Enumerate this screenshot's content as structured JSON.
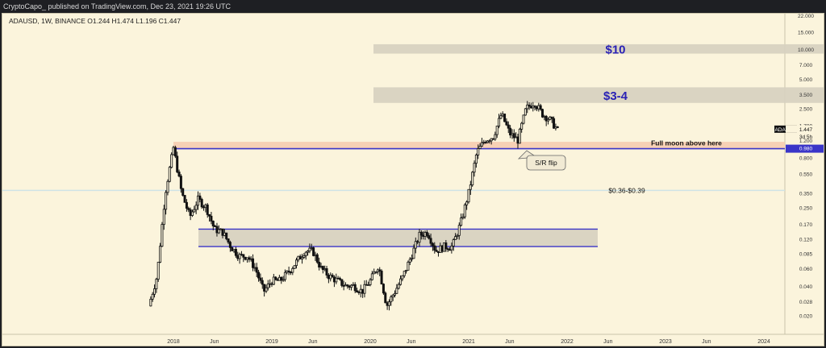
{
  "header": {
    "publish_line": "CryptoCapo_ published on TradingView.com, Dec 23, 2021 19:26 UTC",
    "symbol_line": "ADAUSD, 1W, BINANCE  O1.244  H1.474  L1.196  C1.447"
  },
  "price_tag": {
    "symbol": "ADAUSD",
    "price": "1.447",
    "countdown": "3d 5h",
    "level": "0.980"
  },
  "colors": {
    "background": "#fbf4dc",
    "candle": "#111111",
    "box_fill": "#d8d2c0",
    "line_blue": "#3a35c8",
    "salmon_zone": "#f6cdb0",
    "support_line": "#cfe3e6",
    "label_blue": "#2a22b5"
  },
  "chart_data": {
    "type": "candlestick",
    "symbol": "ADAUSD",
    "interval": "1W",
    "exchange": "BINANCE",
    "y_scale": "log",
    "ylim": [
      0.015,
      22.0
    ],
    "y_ticks": [
      "22.000",
      "15.000",
      "10.000",
      "7.000",
      "5.000",
      "3.500",
      "2.500",
      "1.700",
      "1.200",
      "0.800",
      "0.550",
      "0.350",
      "0.250",
      "0.170",
      "0.120",
      "0.085",
      "0.060",
      "0.040",
      "0.028",
      "0.020"
    ],
    "x_ticks": [
      "2018",
      "Jun",
      "2019",
      "Jun",
      "2020",
      "Jun",
      "2021",
      "Jun",
      "2022",
      "Jun",
      "2023",
      "Jun",
      "2024"
    ],
    "x_tick_dates": [
      "2018-01",
      "2018-06",
      "2019-01",
      "2019-06",
      "2020-01",
      "2020-06",
      "2021-01",
      "2021-06",
      "2022-01",
      "2022-06",
      "2023-01",
      "2023-06",
      "2024-01"
    ],
    "zones": [
      {
        "label": "$10",
        "low": 9.0,
        "high": 11.2
      },
      {
        "label": "$3-4",
        "low": 2.85,
        "high": 4.1
      },
      {
        "label": "",
        "low": 0.1,
        "high": 0.15
      }
    ],
    "lines": [
      {
        "label": "Full moon above here",
        "value": 0.98
      },
      {
        "label": "$0.36-$0.39",
        "value": 0.37
      }
    ],
    "annotations": [
      "S/R flip"
    ],
    "price_path": [
      [
        "2017-10",
        0.025
      ],
      [
        "2017-11",
        0.05
      ],
      [
        "2017-12",
        0.35
      ],
      [
        "2018-01",
        1.0
      ],
      [
        "2018-02",
        0.35
      ],
      [
        "2018-03",
        0.2
      ],
      [
        "2018-04",
        0.3
      ],
      [
        "2018-05",
        0.25
      ],
      [
        "2018-06",
        0.15
      ],
      [
        "2018-07",
        0.14
      ],
      [
        "2018-08",
        0.1
      ],
      [
        "2018-09",
        0.08
      ],
      [
        "2018-10",
        0.08
      ],
      [
        "2018-11",
        0.06
      ],
      [
        "2018-12",
        0.035
      ],
      [
        "2019-01",
        0.045
      ],
      [
        "2019-02",
        0.045
      ],
      [
        "2019-03",
        0.055
      ],
      [
        "2019-04",
        0.07
      ],
      [
        "2019-05",
        0.09
      ],
      [
        "2019-06",
        0.09
      ],
      [
        "2019-07",
        0.06
      ],
      [
        "2019-08",
        0.05
      ],
      [
        "2019-09",
        0.045
      ],
      [
        "2019-10",
        0.04
      ],
      [
        "2019-11",
        0.04
      ],
      [
        "2019-12",
        0.035
      ],
      [
        "2020-01",
        0.045
      ],
      [
        "2020-02",
        0.065
      ],
      [
        "2020-03",
        0.025
      ],
      [
        "2020-04",
        0.035
      ],
      [
        "2020-05",
        0.05
      ],
      [
        "2020-06",
        0.08
      ],
      [
        "2020-07",
        0.13
      ],
      [
        "2020-08",
        0.14
      ],
      [
        "2020-09",
        0.09
      ],
      [
        "2020-10",
        0.1
      ],
      [
        "2020-11",
        0.1
      ],
      [
        "2020-12",
        0.17
      ],
      [
        "2021-01",
        0.35
      ],
      [
        "2021-02",
        0.9
      ],
      [
        "2021-03",
        1.2
      ],
      [
        "2021-04",
        1.3
      ],
      [
        "2021-05",
        2.2
      ],
      [
        "2021-06",
        1.4
      ],
      [
        "2021-07",
        1.2
      ],
      [
        "2021-08",
        2.5
      ],
      [
        "2021-09",
        2.9
      ],
      [
        "2021-10",
        2.2
      ],
      [
        "2021-11",
        1.9
      ],
      [
        "2021-12",
        1.45
      ]
    ]
  }
}
